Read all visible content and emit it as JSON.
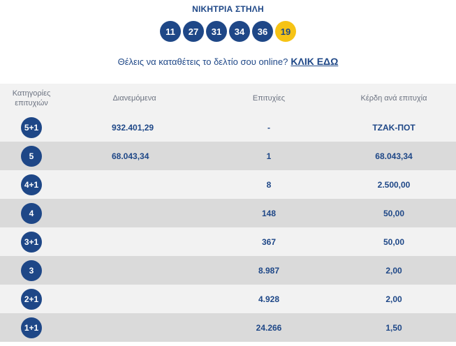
{
  "header": {
    "title": "ΝΙΚΗΤΡΙΑ ΣΤΗΛΗ"
  },
  "winning_numbers": [
    "11",
    "27",
    "31",
    "34",
    "36"
  ],
  "bonus_number": "19",
  "cta": {
    "text": "Θέλεις να καταθέτεις το δελτίο σου online?",
    "link": "ΚΛΙΚ ΕΔΩ"
  },
  "table": {
    "headers": {
      "category_line1": "Κατηγορίες",
      "category_line2": "επιτυχιών",
      "distributed": "Διανεμόμενα",
      "winners": "Επιτυχίες",
      "prize": "Κέρδη ανά επιτυχία"
    },
    "rows": [
      {
        "category": "5+1",
        "distributed": "932.401,29",
        "winners": "-",
        "prize": "ΤΖΑΚ-ΠΟΤ"
      },
      {
        "category": "5",
        "distributed": "68.043,34",
        "winners": "1",
        "prize": "68.043,34"
      },
      {
        "category": "4+1",
        "distributed": "",
        "winners": "8",
        "prize": "2.500,00"
      },
      {
        "category": "4",
        "distributed": "",
        "winners": "148",
        "prize": "50,00"
      },
      {
        "category": "3+1",
        "distributed": "",
        "winners": "367",
        "prize": "50,00"
      },
      {
        "category": "3",
        "distributed": "",
        "winners": "8.987",
        "prize": "2,00"
      },
      {
        "category": "2+1",
        "distributed": "",
        "winners": "4.928",
        "prize": "2,00"
      },
      {
        "category": "1+1",
        "distributed": "",
        "winners": "24.266",
        "prize": "1,50"
      }
    ]
  },
  "colors": {
    "brand_blue": "#1e4787",
    "bonus_yellow": "#f6c315",
    "row_light": "#f2f2f2",
    "row_dark": "#dadada"
  }
}
